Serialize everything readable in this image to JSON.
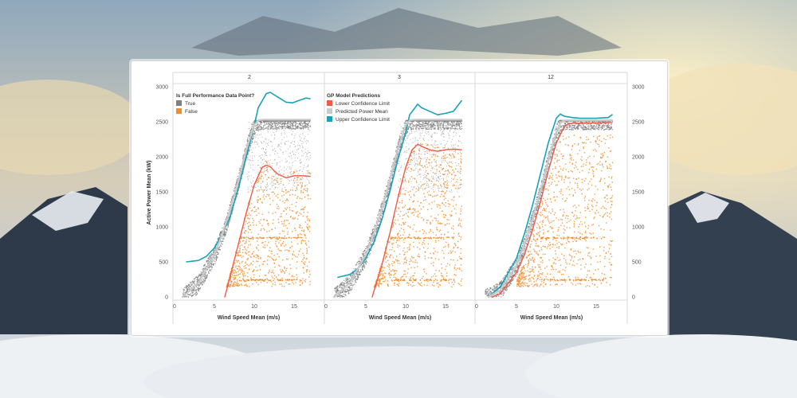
{
  "colors": {
    "true_points": "#7f7f7f",
    "false_points": "#f28e2b",
    "lower_confidence": "#ef5a4b",
    "predicted_mean": "#c9c9c9",
    "upper_confidence": "#17a2b8",
    "background_sky": "#b9c6d3"
  },
  "legends": {
    "performance": {
      "title": "Is Full Performance Data Point?",
      "items": [
        {
          "label": "True",
          "color": "#7f7f7f"
        },
        {
          "label": "False",
          "color": "#f28e2b"
        }
      ]
    },
    "gp": {
      "title": "GP Model Predictions",
      "items": [
        {
          "label": "Lower Confidence Limit",
          "color": "#ef5a4b"
        },
        {
          "label": "Predicted Power Mean",
          "color": "#c9c9c9"
        },
        {
          "label": "Upper Confidence Limit",
          "color": "#17a2b8"
        }
      ]
    }
  },
  "chart_data": {
    "type": "scatter",
    "xlabel": "Wind Speed Mean (m/s)",
    "ylabel": "Active Power Mean (kW)",
    "xlim": [
      0,
      18
    ],
    "ylim": [
      0,
      3000
    ],
    "x_ticks": [
      0,
      5,
      10,
      15
    ],
    "y_ticks": [
      0,
      500,
      1000,
      1500,
      2000,
      2500,
      3000
    ],
    "grid": false,
    "panels": [
      {
        "header": "2",
        "series": [
          {
            "name": "Upper Confidence Limit",
            "x": [
              1.5,
              3,
              4,
              5,
              6,
              7,
              8,
              9,
              10,
              10.5,
              11.5,
              12,
              13,
              14,
              14.8,
              15.5,
              16.5,
              17
            ],
            "y": [
              500,
              520,
              580,
              700,
              900,
              1150,
              1550,
              2000,
              2450,
              2700,
              2900,
              2920,
              2850,
              2780,
              2770,
              2800,
              2840,
              2830
            ]
          },
          {
            "name": "Predicted Power Mean",
            "x": [
              1,
              3,
              5,
              6,
              7,
              8,
              9,
              10,
              10.5,
              11,
              17
            ],
            "y": [
              0,
              200,
              600,
              900,
              1250,
              1650,
              2100,
              2450,
              2520,
              2530,
              2530
            ]
          },
          {
            "name": "Lower Confidence Limit",
            "x": [
              6.3,
              7,
              8,
              9,
              10,
              11,
              11.5,
              12,
              12.5,
              13,
              14,
              15,
              16,
              17
            ],
            "y": [
              0,
              300,
              750,
              1200,
              1600,
              1850,
              1880,
              1860,
              1800,
              1750,
              1700,
              1730,
              1730,
              1720
            ]
          }
        ]
      },
      {
        "header": "3",
        "series": [
          {
            "name": "Upper Confidence Limit",
            "x": [
              1.5,
              3,
              4,
              5,
              6,
              7,
              8,
              9,
              10,
              10.5,
              11.5,
              12,
              13,
              14,
              15,
              16,
              17
            ],
            "y": [
              280,
              320,
              400,
              550,
              780,
              1100,
              1500,
              1950,
              2350,
              2600,
              2750,
              2700,
              2650,
              2600,
              2620,
              2650,
              2800
            ]
          },
          {
            "name": "Predicted Power Mean",
            "x": [
              1,
              3,
              5,
              6,
              7,
              8,
              9,
              10,
              10.5,
              11,
              17
            ],
            "y": [
              0,
              200,
              600,
              900,
              1250,
              1650,
              2100,
              2450,
              2520,
              2530,
              2530
            ]
          },
          {
            "name": "Lower Confidence Limit",
            "x": [
              5.8,
              7,
              8,
              9,
              10,
              10.8,
              11.5,
              12,
              13,
              14,
              15,
              16,
              17
            ],
            "y": [
              0,
              450,
              900,
              1400,
              1850,
              2100,
              2180,
              2150,
              2100,
              2080,
              2100,
              2110,
              2100
            ]
          }
        ]
      },
      {
        "header": "12",
        "series": [
          {
            "name": "Upper Confidence Limit",
            "x": [
              1.5,
              3,
              5,
              6,
              7,
              8,
              9,
              10,
              10.5,
              11,
              12,
              13,
              15,
              16.5,
              17
            ],
            "y": [
              0,
              150,
              550,
              900,
              1300,
              1750,
              2200,
              2550,
              2610,
              2580,
              2560,
              2550,
              2550,
              2560,
              2600
            ]
          },
          {
            "name": "Predicted Power Mean",
            "x": [
              1.5,
              3,
              5,
              6,
              7,
              8,
              9,
              10,
              10.5,
              11,
              17
            ],
            "y": [
              0,
              100,
              450,
              750,
              1100,
              1500,
              1950,
              2350,
              2480,
              2520,
              2520
            ]
          },
          {
            "name": "Lower Confidence Limit",
            "x": [
              2,
              3,
              5,
              6,
              7,
              8,
              9,
              10,
              11,
              11.5,
              12,
              13,
              17
            ],
            "y": [
              0,
              50,
              350,
              600,
              950,
              1350,
              1800,
              2200,
              2430,
              2470,
              2480,
              2480,
              2490
            ]
          }
        ]
      }
    ]
  }
}
